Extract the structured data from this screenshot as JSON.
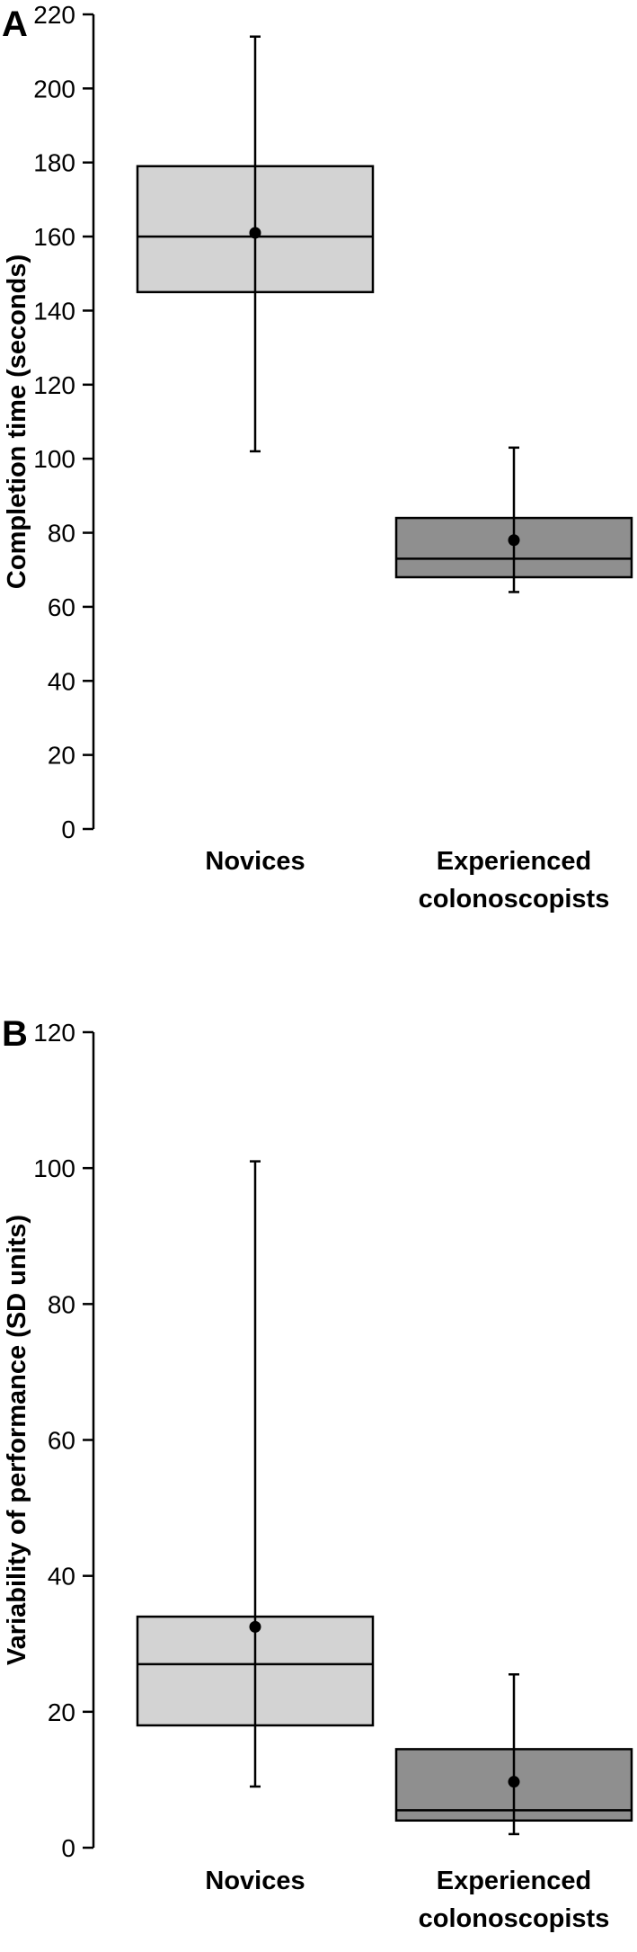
{
  "chart_data": [
    {
      "type": "box",
      "panel_label": "A",
      "ylabel": "Completion time (seconds)",
      "ylim": [
        0,
        220
      ],
      "yticks": [
        0,
        20,
        40,
        60,
        80,
        100,
        120,
        140,
        160,
        180,
        200,
        220
      ],
      "categories": [
        [
          "Novices"
        ],
        [
          "Experienced",
          "colonoscopists"
        ]
      ],
      "boxes": [
        {
          "q1": 145,
          "median": 160,
          "q3": 179,
          "whisker_low": 102,
          "whisker_high": 214,
          "mean": 161,
          "color": "#d3d3d3"
        },
        {
          "q1": 68,
          "median": 73,
          "q3": 84,
          "whisker_low": 64,
          "whisker_high": 103,
          "mean": 78,
          "color": "#8f8f8f"
        }
      ]
    },
    {
      "type": "box",
      "panel_label": "B",
      "ylabel": "Variability of performance (SD units)",
      "ylim": [
        0,
        120
      ],
      "yticks": [
        0,
        20,
        40,
        60,
        80,
        100,
        120
      ],
      "categories": [
        [
          "Novices"
        ],
        [
          "Experienced",
          "colonoscopists"
        ]
      ],
      "boxes": [
        {
          "q1": 18,
          "median": 27,
          "q3": 34,
          "whisker_low": 9,
          "whisker_high": 101,
          "mean": 32.5,
          "color": "#d3d3d3"
        },
        {
          "q1": 4,
          "median": 5.5,
          "q3": 14.5,
          "whisker_low": 2,
          "whisker_high": 25.5,
          "mean": 9.7,
          "color": "#8f8f8f"
        }
      ]
    }
  ]
}
